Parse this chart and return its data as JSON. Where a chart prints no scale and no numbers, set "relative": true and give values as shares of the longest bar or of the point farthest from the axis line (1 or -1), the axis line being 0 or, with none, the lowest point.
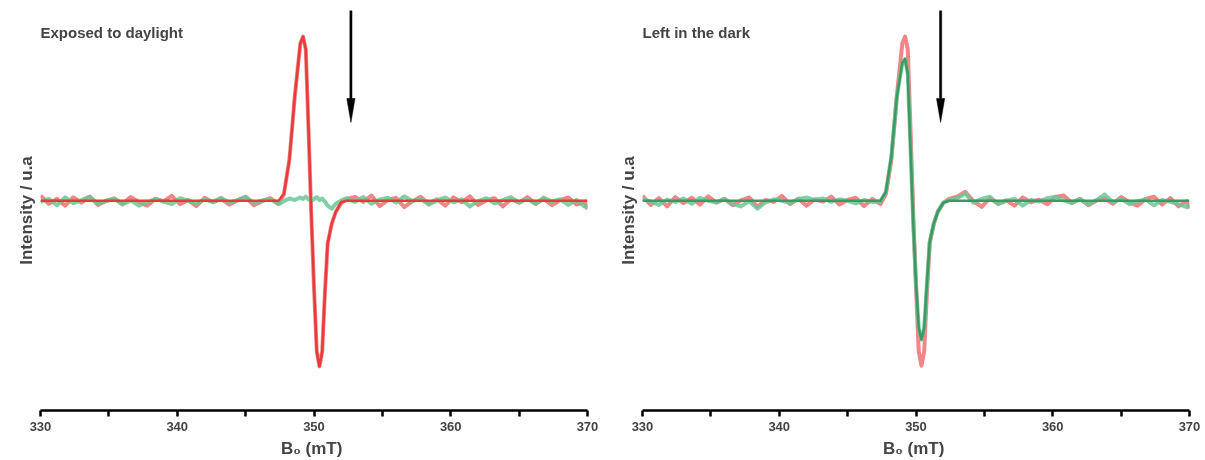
{
  "chart_data": [
    {
      "type": "line",
      "title": "Exposed to daylight",
      "xlabel": "B₀  (mT)",
      "ylabel": "Intensity / u.a",
      "relative": true,
      "xlim": [
        330,
        370
      ],
      "xticks": [
        330,
        {
          "value": 335,
          "label": null
        },
        340,
        {
          "value": 345,
          "label": null
        },
        350,
        {
          "value": 355,
          "label": null
        },
        360,
        {
          "value": 365,
          "label": null
        },
        370
      ],
      "grid": false,
      "marker": "none",
      "line_style": "solid",
      "ref_lines": [
        {
          "axis": "x",
          "value": 352.7,
          "label": null,
          "color": "#000000"
        }
      ],
      "series": [
        {
          "color": "#f07070",
          "x": [
            330,
            330.6,
            331.2,
            331.8,
            332.4,
            333,
            333.6,
            334.2,
            334.8,
            335.4,
            336,
            336.6,
            337.2,
            337.8,
            338.4,
            339,
            339.6,
            340.2,
            340.8,
            341.4,
            342,
            342.6,
            343.2,
            343.8,
            344.4,
            345,
            345.6,
            346.2,
            346.8,
            347.4,
            347.8,
            348.2,
            348.6,
            349,
            349.2,
            349.4,
            349.6,
            349.8,
            350,
            350.2,
            350.4,
            350.6,
            350.8,
            351,
            351.3,
            351.6,
            352,
            352.4,
            353,
            353.6,
            354.2,
            354.8,
            355.4,
            356,
            356.6,
            357.2,
            357.8,
            358.4,
            359,
            359.6,
            360.2,
            360.8,
            361.4,
            362,
            362.6,
            363.2,
            363.8,
            364.4,
            365,
            365.6,
            366.2,
            366.8,
            367.4,
            368,
            368.6,
            369.2,
            369.8,
            370
          ],
          "values": [
            0.575,
            0.553,
            0.566,
            0.548,
            0.57,
            0.556,
            0.572,
            0.55,
            0.561,
            0.567,
            0.553,
            0.571,
            0.558,
            0.548,
            0.566,
            0.56,
            0.574,
            0.552,
            0.563,
            0.547,
            0.569,
            0.557,
            0.566,
            0.551,
            0.562,
            0.571,
            0.549,
            0.56,
            0.568,
            0.553,
            0.579,
            0.671,
            0.842,
            0.982,
            1.0,
            0.966,
            0.75,
            0.526,
            0.329,
            0.158,
            0.118,
            0.158,
            0.316,
            0.447,
            0.5,
            0.532,
            0.555,
            0.566,
            0.571,
            0.558,
            0.575,
            0.547,
            0.563,
            0.569,
            0.544,
            0.56,
            0.572,
            0.552,
            0.565,
            0.548,
            0.57,
            0.557,
            0.573,
            0.55,
            0.562,
            0.568,
            0.546,
            0.565,
            0.556,
            0.571,
            0.553,
            0.566,
            0.549,
            0.563,
            0.57,
            0.551,
            0.559,
            0.538
          ]
        },
        {
          "color": "#6cc596",
          "x": [
            330,
            330.6,
            331.2,
            331.8,
            332.4,
            333,
            333.6,
            334.2,
            334.8,
            335.4,
            336,
            336.6,
            337.2,
            337.8,
            338.4,
            339,
            339.6,
            340.2,
            340.8,
            341.4,
            342,
            342.6,
            343.2,
            343.8,
            344.4,
            345,
            345.6,
            346.2,
            346.8,
            347.4,
            347.8,
            348.2,
            348.6,
            349,
            349.2,
            349.4,
            349.6,
            349.8,
            350,
            350.2,
            350.4,
            350.6,
            350.8,
            351,
            351.3,
            351.6,
            352,
            352.4,
            353,
            353.6,
            354.2,
            354.8,
            355.4,
            356,
            356.6,
            357.2,
            357.8,
            358.4,
            359,
            359.6,
            360.2,
            360.8,
            361.4,
            362,
            362.6,
            363.2,
            363.8,
            364.4,
            365,
            365.6,
            366.2,
            366.8,
            367.4,
            368,
            368.6,
            369.2,
            369.8,
            370
          ],
          "values": [
            0.558,
            0.566,
            0.549,
            0.57,
            0.555,
            0.563,
            0.572,
            0.553,
            0.56,
            0.567,
            0.551,
            0.562,
            0.548,
            0.557,
            0.566,
            0.559,
            0.552,
            0.568,
            0.561,
            0.554,
            0.565,
            0.558,
            0.569,
            0.556,
            0.563,
            0.572,
            0.555,
            0.561,
            0.566,
            0.552,
            0.56,
            0.567,
            0.563,
            0.57,
            0.566,
            0.572,
            0.565,
            0.56,
            0.566,
            0.571,
            0.563,
            0.567,
            0.559,
            0.548,
            0.54,
            0.553,
            0.562,
            0.568,
            0.558,
            0.571,
            0.553,
            0.564,
            0.569,
            0.556,
            0.573,
            0.56,
            0.566,
            0.551,
            0.562,
            0.57,
            0.557,
            0.565,
            0.546,
            0.56,
            0.568,
            0.554,
            0.563,
            0.571,
            0.556,
            0.566,
            0.552,
            0.57,
            0.559,
            0.565,
            0.55,
            0.563,
            0.545,
            0.548
          ]
        },
        {
          "color": "#e83a3a",
          "x": [
            330,
            347.4,
            347.8,
            348.2,
            348.6,
            349,
            349.2,
            349.4,
            349.6,
            349.8,
            350,
            350.2,
            350.4,
            350.6,
            350.8,
            351,
            351.3,
            351.6,
            352,
            352.4,
            370
          ],
          "values": [
            0.561,
            0.561,
            0.579,
            0.671,
            0.842,
            0.982,
            1.0,
            0.966,
            0.75,
            0.526,
            0.329,
            0.158,
            0.118,
            0.158,
            0.316,
            0.447,
            0.5,
            0.532,
            0.558,
            0.561,
            0.561
          ]
        }
      ]
    },
    {
      "type": "line",
      "title": "Left in the dark",
      "xlabel": "B₀  (mT)",
      "ylabel": "Intensity / u.a",
      "relative": true,
      "xlim": [
        330,
        370
      ],
      "xticks": [
        330,
        {
          "value": 335,
          "label": null
        },
        340,
        {
          "value": 345,
          "label": null
        },
        350,
        {
          "value": 355,
          "label": null
        },
        360,
        {
          "value": 365,
          "label": null
        },
        370
      ],
      "grid": false,
      "marker": "none",
      "line_style": "solid",
      "ref_lines": [
        {
          "axis": "x",
          "value": 351.8,
          "label": null,
          "color": "#000000"
        }
      ],
      "series": [
        {
          "color": "#f07070",
          "x": [
            330,
            330.6,
            331.2,
            331.8,
            332.4,
            333,
            333.6,
            334.2,
            334.8,
            335.4,
            336,
            336.6,
            337.2,
            337.8,
            338.4,
            339,
            339.6,
            340.2,
            340.8,
            341.4,
            342,
            342.6,
            343.2,
            343.8,
            344.4,
            345,
            345.6,
            346.2,
            346.8,
            347.4,
            347.8,
            348.2,
            348.6,
            349,
            349.2,
            349.4,
            349.6,
            349.8,
            350,
            350.2,
            350.4,
            350.6,
            350.8,
            351,
            351.3,
            351.6,
            352,
            352.4,
            353,
            353.6,
            354.2,
            354.8,
            355.4,
            356,
            356.6,
            357.2,
            357.8,
            358.4,
            359,
            359.6,
            360.2,
            360.8,
            361.4,
            362,
            362.6,
            363.2,
            363.8,
            364.4,
            365,
            365.6,
            366.2,
            366.8,
            367.4,
            368,
            368.6,
            369.2,
            369.8,
            370
          ],
          "values": [
            0.574,
            0.55,
            0.568,
            0.546,
            0.571,
            0.555,
            0.569,
            0.551,
            0.573,
            0.557,
            0.566,
            0.549,
            0.562,
            0.57,
            0.545,
            0.563,
            0.558,
            0.574,
            0.552,
            0.567,
            0.548,
            0.565,
            0.559,
            0.572,
            0.551,
            0.563,
            0.569,
            0.547,
            0.566,
            0.552,
            0.579,
            0.671,
            0.842,
            0.982,
            1.0,
            0.966,
            0.75,
            0.526,
            0.329,
            0.158,
            0.12,
            0.158,
            0.316,
            0.447,
            0.5,
            0.532,
            0.555,
            0.566,
            0.572,
            0.585,
            0.56,
            0.545,
            0.568,
            0.553,
            0.562,
            0.548,
            0.57,
            0.557,
            0.564,
            0.552,
            0.571,
            0.575,
            0.556,
            0.566,
            0.549,
            0.562,
            0.568,
            0.553,
            0.571,
            0.557,
            0.548,
            0.566,
            0.572,
            0.551,
            0.568,
            0.546,
            0.56,
            0.54
          ]
        },
        {
          "color": "#6cc596",
          "x": [
            330,
            330.6,
            331.2,
            331.8,
            332.4,
            333,
            333.6,
            334.2,
            334.8,
            335.4,
            336,
            336.6,
            337.2,
            337.8,
            338.4,
            339,
            339.6,
            340.2,
            340.8,
            341.4,
            342,
            342.6,
            343.2,
            343.8,
            344.4,
            345,
            345.6,
            346.2,
            346.8,
            347.4,
            347.8,
            348.2,
            348.6,
            349,
            349.2,
            349.4,
            349.6,
            349.8,
            350,
            350.2,
            350.4,
            350.6,
            350.8,
            351,
            351.3,
            351.6,
            352,
            352.4,
            353,
            353.6,
            354.2,
            354.8,
            355.4,
            356,
            356.6,
            357.2,
            357.8,
            358.4,
            359,
            359.6,
            360.2,
            360.8,
            361.4,
            362,
            362.6,
            363.2,
            363.8,
            364.4,
            365,
            365.6,
            366.2,
            366.8,
            367.4,
            368,
            368.6,
            369.2,
            369.8,
            370
          ],
          "values": [
            0.566,
            0.559,
            0.55,
            0.564,
            0.558,
            0.567,
            0.553,
            0.569,
            0.561,
            0.556,
            0.566,
            0.552,
            0.546,
            0.56,
            0.54,
            0.557,
            0.565,
            0.561,
            0.555,
            0.566,
            0.57,
            0.563,
            0.567,
            0.558,
            0.565,
            0.561,
            0.554,
            0.563,
            0.558,
            0.56,
            0.585,
            0.68,
            0.84,
            0.93,
            0.94,
            0.9,
            0.7,
            0.5,
            0.34,
            0.22,
            0.19,
            0.22,
            0.34,
            0.45,
            0.5,
            0.532,
            0.556,
            0.562,
            0.568,
            0.58,
            0.556,
            0.566,
            0.572,
            0.552,
            0.561,
            0.566,
            0.548,
            0.563,
            0.559,
            0.568,
            0.572,
            0.562,
            0.555,
            0.566,
            0.551,
            0.563,
            0.578,
            0.557,
            0.566,
            0.552,
            0.56,
            0.565,
            0.549,
            0.563,
            0.558,
            0.552,
            0.544,
            0.55
          ]
        },
        {
          "color": "#3a9a62",
          "x": [
            330,
            347.4,
            347.8,
            348.2,
            348.6,
            349,
            349.2,
            349.4,
            349.6,
            349.8,
            350,
            350.2,
            350.4,
            350.6,
            350.8,
            351,
            351.3,
            351.6,
            352,
            352.4,
            370
          ],
          "values": [
            0.561,
            0.561,
            0.585,
            0.68,
            0.84,
            0.93,
            0.94,
            0.9,
            0.7,
            0.5,
            0.34,
            0.22,
            0.19,
            0.22,
            0.34,
            0.45,
            0.5,
            0.532,
            0.556,
            0.561,
            0.561
          ]
        }
      ]
    }
  ]
}
